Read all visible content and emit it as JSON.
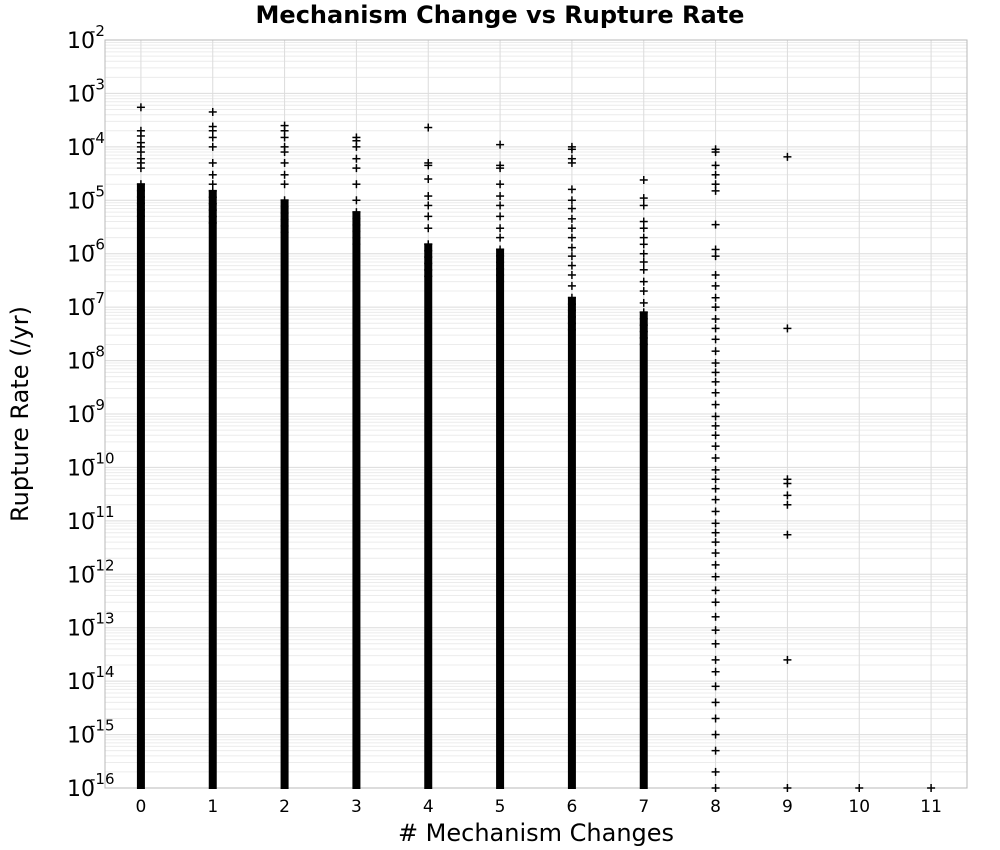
{
  "chart_data": {
    "type": "scatter",
    "title": "Mechanism Change vs Rupture Rate",
    "xlabel": "# Mechanism Changes",
    "ylabel": "Rupture Rate (/yr)",
    "x_ticks": [
      "0",
      "1",
      "2",
      "3",
      "4",
      "5",
      "6",
      "7",
      "8",
      "9",
      "10",
      "11"
    ],
    "xlim": [
      -0.5,
      11.5
    ],
    "y_scale": "log",
    "ylim": [
      1e-16,
      0.01
    ],
    "y_ticks": [
      {
        "base": "10",
        "exp": "-2"
      },
      {
        "base": "10",
        "exp": "-3"
      },
      {
        "base": "10",
        "exp": "-4"
      },
      {
        "base": "10",
        "exp": "-5"
      },
      {
        "base": "10",
        "exp": "-6"
      },
      {
        "base": "10",
        "exp": "-7"
      },
      {
        "base": "10",
        "exp": "-8"
      },
      {
        "base": "10",
        "exp": "-9"
      },
      {
        "base": "10",
        "exp": "-10"
      },
      {
        "base": "10",
        "exp": "-11"
      },
      {
        "base": "10",
        "exp": "-12"
      },
      {
        "base": "10",
        "exp": "-13"
      },
      {
        "base": "10",
        "exp": "-14"
      },
      {
        "base": "10",
        "exp": "-15"
      },
      {
        "base": "10",
        "exp": "-16"
      }
    ],
    "grid": true,
    "marker": "plus",
    "marker_color": "#000000",
    "columns": [
      {
        "x": 0,
        "dense_range": [
          1e-16,
          2e-05
        ],
        "outliers": [
          0.00055,
          0.0002,
          0.00016,
          0.00012,
          0.0001,
          8e-05,
          6e-05,
          5e-05,
          4e-05
        ]
      },
      {
        "x": 1,
        "dense_range": [
          1e-16,
          1.5e-05
        ],
        "outliers": [
          0.00045,
          0.00024,
          0.0002,
          0.00015,
          0.0001,
          5e-05,
          3e-05,
          2e-05
        ]
      },
      {
        "x": 2,
        "dense_range": [
          1e-16,
          1e-05
        ],
        "outliers": [
          0.00025,
          0.0002,
          0.00015,
          0.0001,
          8e-05,
          5e-05,
          3e-05,
          2e-05
        ]
      },
      {
        "x": 3,
        "dense_range": [
          1e-16,
          6e-06
        ],
        "outliers": [
          0.00015,
          0.00013,
          0.0001,
          6e-05,
          4e-05,
          2e-05,
          1e-05
        ]
      },
      {
        "x": 4,
        "dense_range": [
          1e-16,
          1.5e-06
        ],
        "outliers": [
          0.00023,
          5e-05,
          4.5e-05,
          2.5e-05,
          1.2e-05,
          8e-06,
          5e-06,
          3e-06
        ]
      },
      {
        "x": 5,
        "dense_range": [
          1e-16,
          1.2e-06
        ],
        "outliers": [
          0.00011,
          4.5e-05,
          4e-05,
          2e-05,
          1.2e-05,
          8e-06,
          5e-06,
          3e-06,
          2e-06
        ]
      },
      {
        "x": 6,
        "dense_range": [
          1e-16,
          1.5e-07
        ],
        "outliers": [
          0.0001,
          9e-05,
          6e-05,
          5e-05,
          1.6e-05,
          1e-05,
          7e-06,
          4.5e-06,
          3e-06,
          2e-06,
          1.3e-06,
          9e-07,
          6e-07,
          4e-07,
          2.5e-07
        ]
      },
      {
        "x": 7,
        "dense_range": [
          1e-16,
          8e-08
        ],
        "outliers": [
          2.4e-05,
          1.1e-05,
          8e-06,
          4e-06,
          3e-06,
          2e-06,
          1.5e-06,
          1e-06,
          7e-07,
          5e-07,
          3e-07,
          2e-07,
          1.2e-07
        ]
      },
      {
        "x": 8,
        "dense_range": null,
        "outliers": [
          9e-05,
          8e-05,
          4.5e-05,
          3e-05,
          2e-05,
          1.5e-05,
          3.5e-06,
          1.2e-06,
          9e-07,
          4e-07,
          2.5e-07,
          1.5e-07,
          1e-07,
          6e-08,
          4e-08,
          2.5e-08,
          1.5e-08,
          9e-09,
          6e-09,
          4e-09,
          2.5e-09,
          1.5e-09,
          9e-10,
          6e-10,
          4e-10,
          2.5e-10,
          1.5e-10,
          9e-11,
          6e-11,
          4e-11,
          2.5e-11,
          1.5e-11,
          9e-12,
          6e-12,
          4e-12,
          2.5e-12,
          1.5e-12,
          9e-13,
          5e-13,
          3e-13,
          1.6e-13,
          9e-14,
          5e-14,
          2.5e-14,
          1.5e-14,
          8e-15,
          4e-15,
          2e-15,
          1e-15,
          5e-16,
          2e-16,
          1e-16
        ]
      },
      {
        "x": 9,
        "dense_range": null,
        "outliers": [
          6.5e-05,
          4e-08,
          6e-11,
          5e-11,
          3e-11,
          2e-11,
          5.5e-12,
          2.5e-14,
          1e-16
        ]
      },
      {
        "x": 10,
        "dense_range": null,
        "outliers": [
          1e-16
        ]
      },
      {
        "x": 11,
        "dense_range": null,
        "outliers": [
          1e-16
        ]
      }
    ]
  }
}
